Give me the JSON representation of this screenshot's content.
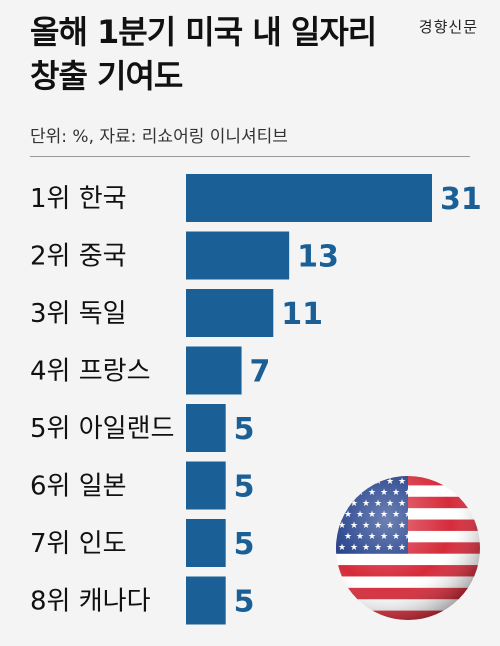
{
  "header": {
    "title": "올해 1분기 미국 내 일자리 창출 기여도",
    "brand": "경향신문",
    "subtitle": "단위: %, 자료: 리쇼어링 이니셔티브"
  },
  "colors": {
    "bar": "#1a5f96",
    "text": "#111111",
    "background": "#f4f4f4"
  },
  "chart_data": {
    "type": "bar",
    "orientation": "horizontal",
    "title": "올해 1분기 미국 내 일자리 창출 기여도",
    "unit": "%",
    "source": "리쇼어링 이니셔티브",
    "categories": [
      "1위 한국",
      "2위 중국",
      "3위 독일",
      "4위 프랑스",
      "5위 아일랜드",
      "6위 일본",
      "7위 인도",
      "8위 캐나다"
    ],
    "values": [
      31,
      13,
      11,
      7,
      5,
      5,
      5,
      5
    ],
    "xlim": [
      0,
      31
    ],
    "grid": false,
    "legend": "none",
    "data_labels": true
  },
  "decoration": {
    "flag": "us-flag-sphere-icon"
  }
}
